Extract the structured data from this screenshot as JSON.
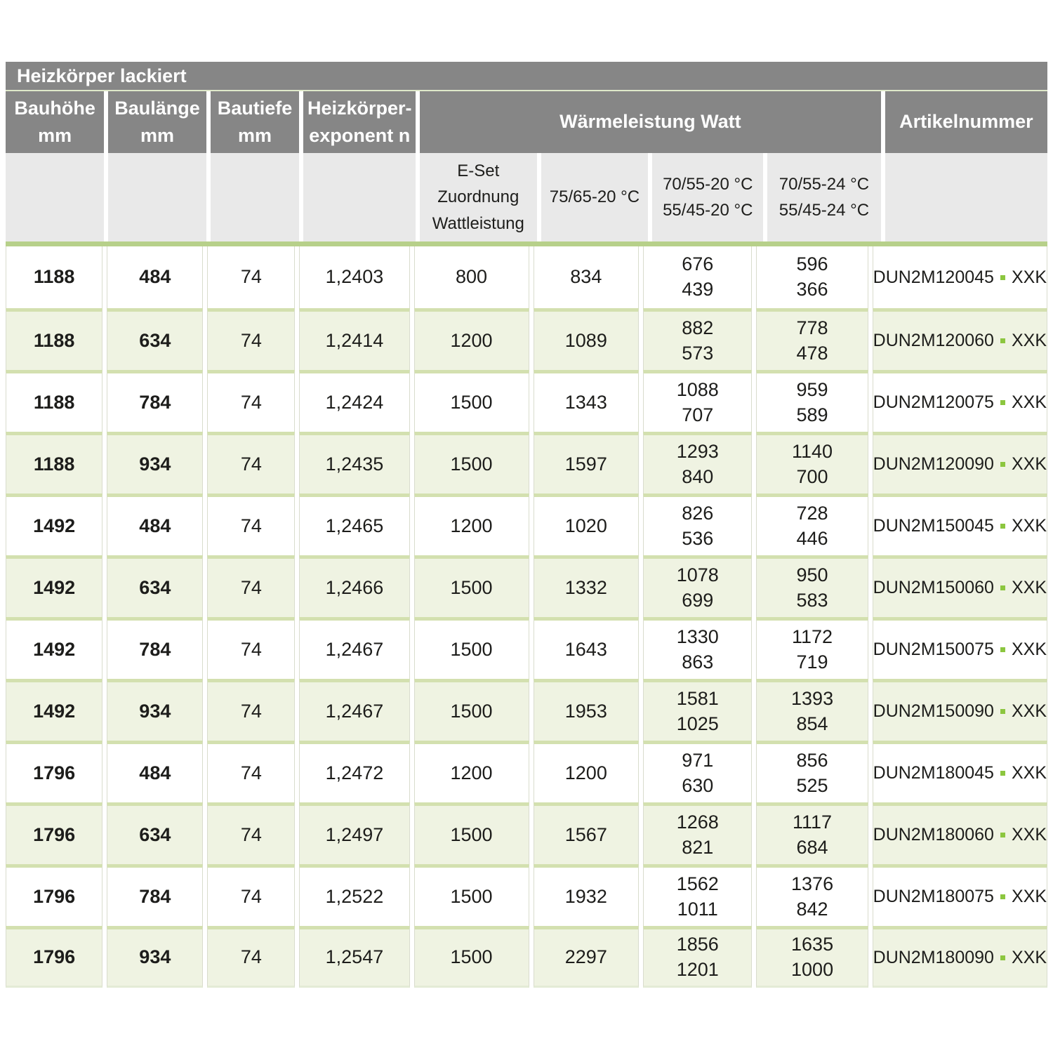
{
  "title": "Heizkörper lackiert",
  "colors": {
    "header_bg": "#868686",
    "header_text": "#ffffff",
    "subheader_bg": "#e9e9e9",
    "row_alt_bg": "#eff3e2",
    "row_separator_green": "#d3e0af",
    "thick_line_green": "#b7d08a",
    "thin_line_green": "#dfe9ca",
    "artikel_dot_green": "#8cc63f",
    "text": "#1d1d1b"
  },
  "header": {
    "bauhoehe": "Bauhöhe\nmm",
    "baulaenge": "Baulänge\nmm",
    "bautiefe": "Bautiefe\nmm",
    "exponent": "Heizkörper-\nexponent n",
    "waermeleistung": "Wärmeleistung Watt",
    "artikelnummer": "Artikelnummer"
  },
  "subheader": {
    "eset": "E-Set\nZuordnung\nWattleistung",
    "t7565": "75/65-20 °C",
    "t7055_20": "70/55-20 °C\n55/45-20 °C",
    "t7055_24": "70/55-24 °C\n55/45-24 °C"
  },
  "rows": [
    {
      "bauhoehe": "1188",
      "baulaenge": "484",
      "bautiefe": "74",
      "exponent": "1,2403",
      "eset": "800",
      "w7565": "834",
      "w7055_20": "676\n439",
      "w7055_24": "596\n366",
      "artikel_code": "DUN2M120045",
      "artikel_suffix": "XXK"
    },
    {
      "bauhoehe": "1188",
      "baulaenge": "634",
      "bautiefe": "74",
      "exponent": "1,2414",
      "eset": "1200",
      "w7565": "1089",
      "w7055_20": "882\n573",
      "w7055_24": "778\n478",
      "artikel_code": "DUN2M120060",
      "artikel_suffix": "XXK"
    },
    {
      "bauhoehe": "1188",
      "baulaenge": "784",
      "bautiefe": "74",
      "exponent": "1,2424",
      "eset": "1500",
      "w7565": "1343",
      "w7055_20": "1088\n707",
      "w7055_24": "959\n589",
      "artikel_code": "DUN2M120075",
      "artikel_suffix": "XXK"
    },
    {
      "bauhoehe": "1188",
      "baulaenge": "934",
      "bautiefe": "74",
      "exponent": "1,2435",
      "eset": "1500",
      "w7565": "1597",
      "w7055_20": "1293\n840",
      "w7055_24": "1140\n700",
      "artikel_code": "DUN2M120090",
      "artikel_suffix": "XXK"
    },
    {
      "bauhoehe": "1492",
      "baulaenge": "484",
      "bautiefe": "74",
      "exponent": "1,2465",
      "eset": "1200",
      "w7565": "1020",
      "w7055_20": "826\n536",
      "w7055_24": "728\n446",
      "artikel_code": "DUN2M150045",
      "artikel_suffix": "XXK"
    },
    {
      "bauhoehe": "1492",
      "baulaenge": "634",
      "bautiefe": "74",
      "exponent": "1,2466",
      "eset": "1500",
      "w7565": "1332",
      "w7055_20": "1078\n699",
      "w7055_24": "950\n583",
      "artikel_code": "DUN2M150060",
      "artikel_suffix": "XXK"
    },
    {
      "bauhoehe": "1492",
      "baulaenge": "784",
      "bautiefe": "74",
      "exponent": "1,2467",
      "eset": "1500",
      "w7565": "1643",
      "w7055_20": "1330\n863",
      "w7055_24": "1172\n719",
      "artikel_code": "DUN2M150075",
      "artikel_suffix": "XXK"
    },
    {
      "bauhoehe": "1492",
      "baulaenge": "934",
      "bautiefe": "74",
      "exponent": "1,2467",
      "eset": "1500",
      "w7565": "1953",
      "w7055_20": "1581\n1025",
      "w7055_24": "1393\n854",
      "artikel_code": "DUN2M150090",
      "artikel_suffix": "XXK"
    },
    {
      "bauhoehe": "1796",
      "baulaenge": "484",
      "bautiefe": "74",
      "exponent": "1,2472",
      "eset": "1200",
      "w7565": "1200",
      "w7055_20": "971\n630",
      "w7055_24": "856\n525",
      "artikel_code": "DUN2M180045",
      "artikel_suffix": "XXK"
    },
    {
      "bauhoehe": "1796",
      "baulaenge": "634",
      "bautiefe": "74",
      "exponent": "1,2497",
      "eset": "1500",
      "w7565": "1567",
      "w7055_20": "1268\n821",
      "w7055_24": "1117\n684",
      "artikel_code": "DUN2M180060",
      "artikel_suffix": "XXK"
    },
    {
      "bauhoehe": "1796",
      "baulaenge": "784",
      "bautiefe": "74",
      "exponent": "1,2522",
      "eset": "1500",
      "w7565": "1932",
      "w7055_20": "1562\n1011",
      "w7055_24": "1376\n842",
      "artikel_code": "DUN2M180075",
      "artikel_suffix": "XXK"
    },
    {
      "bauhoehe": "1796",
      "baulaenge": "934",
      "bautiefe": "74",
      "exponent": "1,2547",
      "eset": "1500",
      "w7565": "2297",
      "w7055_20": "1856\n1201",
      "w7055_24": "1635\n1000",
      "artikel_code": "DUN2M180090",
      "artikel_suffix": "XXK"
    }
  ]
}
